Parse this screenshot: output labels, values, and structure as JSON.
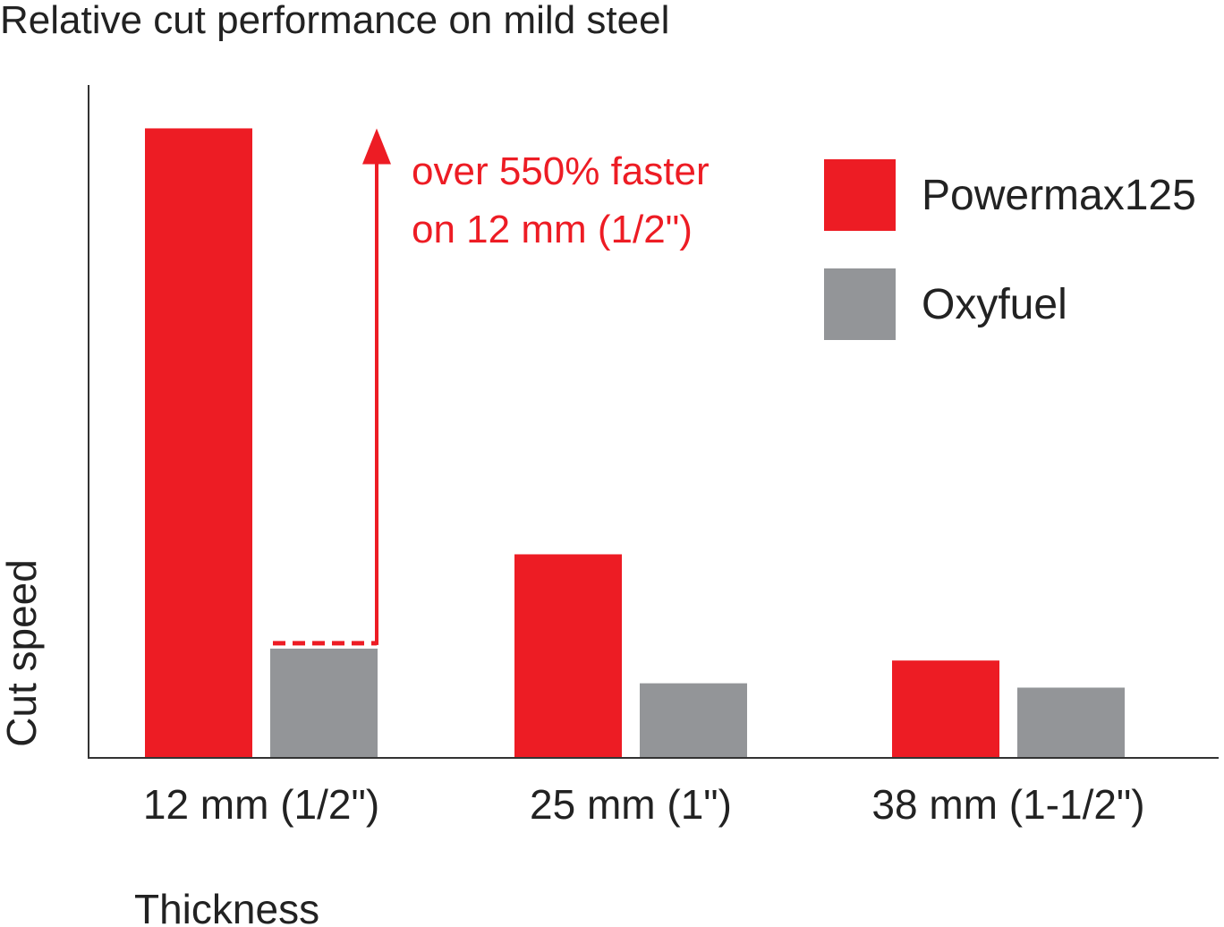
{
  "chart_data": {
    "type": "bar",
    "title": "Relative cut performance on mild steel",
    "xlabel": "Thickness",
    "ylabel": "Cut speed",
    "categories": [
      "12 mm (1/2\")",
      "25 mm (1\")",
      "38 mm (1-1/2\")"
    ],
    "series": [
      {
        "name": "Powermax125",
        "color": "#ed1c24",
        "values": [
          5.8,
          1.87,
          0.89
        ]
      },
      {
        "name": "Oxyfuel",
        "color": "#939598",
        "values": [
          1.0,
          0.68,
          0.64
        ]
      }
    ],
    "ylim": [
      0,
      6.2
    ],
    "y_ticks_shown": false,
    "grid": false,
    "legend_position": "top-right",
    "annotation": {
      "line1": "over 550% faster",
      "line2": "on 12 mm (1/2\")",
      "color": "#ed1c24",
      "from_value": 1.0,
      "to_value": 5.8,
      "category": "12 mm (1/2\")"
    }
  }
}
